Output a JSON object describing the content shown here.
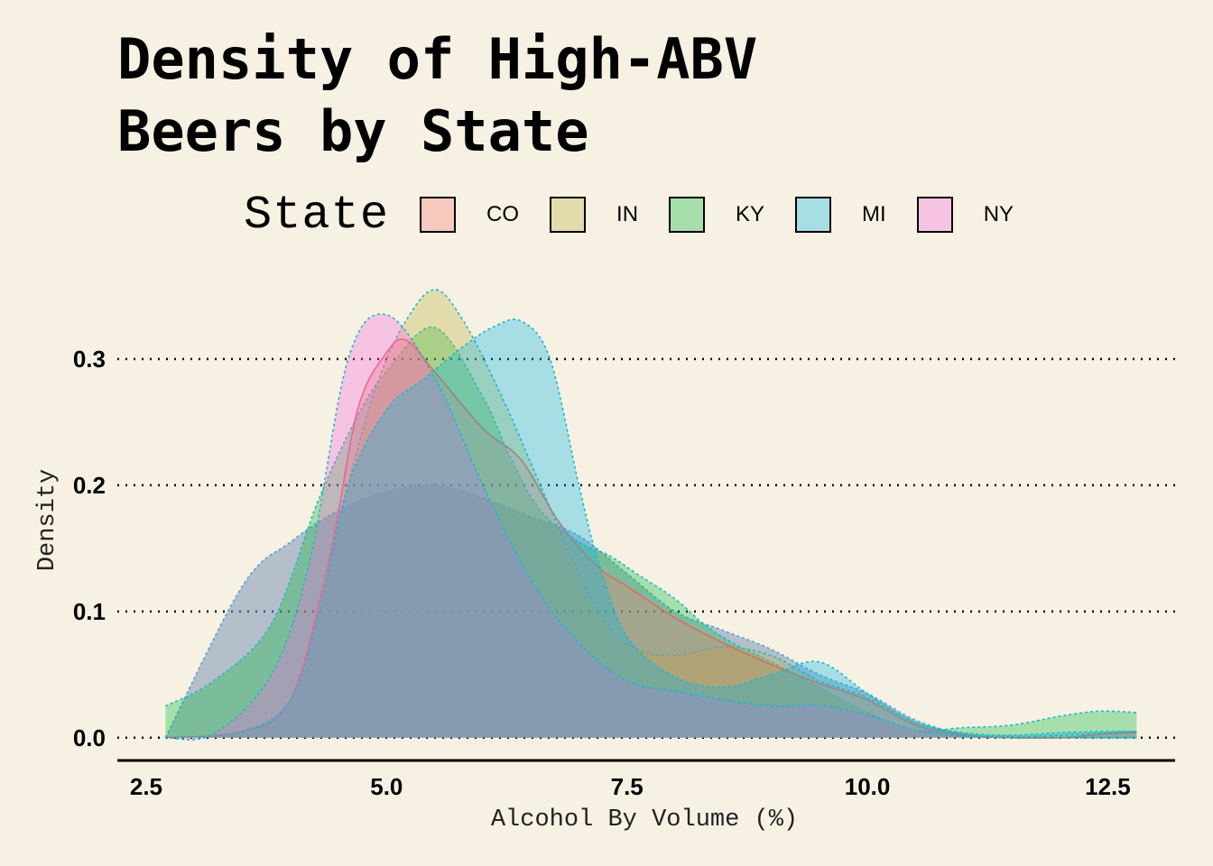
{
  "chart_data": {
    "type": "area",
    "title_lines": [
      "Density of High-ABV",
      "Beers by State"
    ],
    "xlabel": "Alcohol By Volume (%)",
    "ylabel": "Density",
    "xlim": [
      2.2,
      13.2
    ],
    "ylim": [
      -0.018,
      0.37
    ],
    "x_ticks": [
      2.5,
      5.0,
      7.5,
      10.0,
      12.5
    ],
    "x_tick_labels": [
      "2.5",
      "5.0",
      "7.5",
      "10.0",
      "12.5"
    ],
    "y_ticks": [
      0.0,
      0.1,
      0.2,
      0.3
    ],
    "y_tick_labels": [
      "0.0",
      "0.1",
      "0.2",
      "0.3"
    ],
    "grid": "horizontal dotted",
    "legend": {
      "title": "State",
      "position": "top"
    },
    "series": [
      {
        "name": "CO",
        "color": "#f8766d",
        "x": [
          2.7,
          3.5,
          4.0,
          4.4,
          4.7,
          5.0,
          5.2,
          5.5,
          6.0,
          6.4,
          6.8,
          7.2,
          7.5,
          8.0,
          8.5,
          9.0,
          9.5,
          10.0,
          10.5,
          11.0,
          11.5,
          12.0,
          12.5,
          12.8
        ],
        "y": [
          0.0,
          0.005,
          0.03,
          0.14,
          0.26,
          0.305,
          0.315,
          0.29,
          0.245,
          0.22,
          0.17,
          0.135,
          0.12,
          0.095,
          0.075,
          0.058,
          0.043,
          0.03,
          0.01,
          0.002,
          0.0,
          0.0,
          0.003,
          0.004
        ]
      },
      {
        "name": "IN",
        "color": "#b9b23a",
        "x": [
          2.7,
          3.5,
          4.0,
          4.3,
          4.6,
          4.9,
          5.2,
          5.5,
          5.8,
          6.2,
          6.6,
          7.0,
          7.3,
          7.6,
          8.0,
          8.5,
          9.0,
          9.5,
          10.0,
          10.5,
          11.0,
          11.5,
          12.0,
          12.5,
          12.8
        ],
        "y": [
          0.0,
          0.005,
          0.03,
          0.1,
          0.2,
          0.28,
          0.33,
          0.355,
          0.33,
          0.27,
          0.2,
          0.13,
          0.09,
          0.07,
          0.065,
          0.072,
          0.065,
          0.045,
          0.032,
          0.012,
          0.003,
          0.001,
          0.002,
          0.004,
          0.005
        ]
      },
      {
        "name": "KY",
        "color": "#00ba38",
        "x": [
          2.7,
          3.2,
          3.8,
          4.3,
          4.7,
          5.0,
          5.5,
          6.0,
          6.3,
          6.6,
          7.0,
          7.3,
          7.6,
          8.0,
          8.3,
          8.6,
          9.0,
          9.5,
          10.0,
          10.5,
          11.0,
          11.5,
          12.0,
          12.4,
          12.8
        ],
        "y": [
          0.025,
          0.045,
          0.09,
          0.19,
          0.255,
          0.29,
          0.325,
          0.27,
          0.22,
          0.18,
          0.155,
          0.145,
          0.13,
          0.11,
          0.09,
          0.075,
          0.06,
          0.04,
          0.02,
          0.006,
          0.008,
          0.01,
          0.017,
          0.021,
          0.02
        ]
      },
      {
        "name": "MI",
        "color": "#00b7e8",
        "x": [
          2.7,
          3.5,
          4.0,
          4.3,
          4.6,
          5.0,
          5.4,
          5.8,
          6.1,
          6.4,
          6.7,
          7.0,
          7.2,
          7.5,
          8.0,
          8.5,
          9.0,
          9.5,
          10.0,
          10.5,
          11.0,
          11.5,
          12.0,
          12.5,
          12.8
        ],
        "y": [
          0.0,
          0.005,
          0.03,
          0.1,
          0.2,
          0.26,
          0.285,
          0.31,
          0.325,
          0.33,
          0.3,
          0.2,
          0.14,
          0.08,
          0.048,
          0.04,
          0.05,
          0.06,
          0.035,
          0.012,
          0.004,
          0.002,
          0.004,
          0.005,
          0.005
        ]
      },
      {
        "name": "NY",
        "color": "#f564e3",
        "x": [
          2.7,
          3.2,
          3.8,
          4.2,
          4.6,
          5.0,
          5.5,
          6.0,
          6.5,
          7.0,
          7.5,
          8.0,
          8.5,
          9.0,
          9.5,
          10.0,
          10.5,
          11.0,
          11.5,
          12.0,
          12.5,
          12.8
        ],
        "y": [
          0.0,
          0.003,
          0.05,
          0.14,
          0.3,
          0.335,
          0.285,
          0.2,
          0.125,
          0.075,
          0.045,
          0.037,
          0.03,
          0.025,
          0.026,
          0.018,
          0.006,
          0.001,
          0.0,
          0.0,
          0.0,
          0.0
        ]
      },
      {
        "name": "",
        "color": "#7f93b8",
        "x": [
          2.7,
          3.5,
          4.0,
          4.5,
          5.0,
          5.5,
          6.0,
          6.5,
          7.0,
          7.5,
          8.0,
          8.5,
          9.0,
          9.5,
          10.0,
          10.5,
          11.0,
          11.5,
          12.0,
          12.5,
          12.8
        ],
        "y": [
          0.0,
          0.12,
          0.155,
          0.18,
          0.195,
          0.2,
          0.19,
          0.175,
          0.16,
          0.13,
          0.1,
          0.085,
          0.07,
          0.05,
          0.035,
          0.014,
          0.003,
          0.0,
          0.0,
          0.0,
          0.0
        ]
      }
    ]
  }
}
